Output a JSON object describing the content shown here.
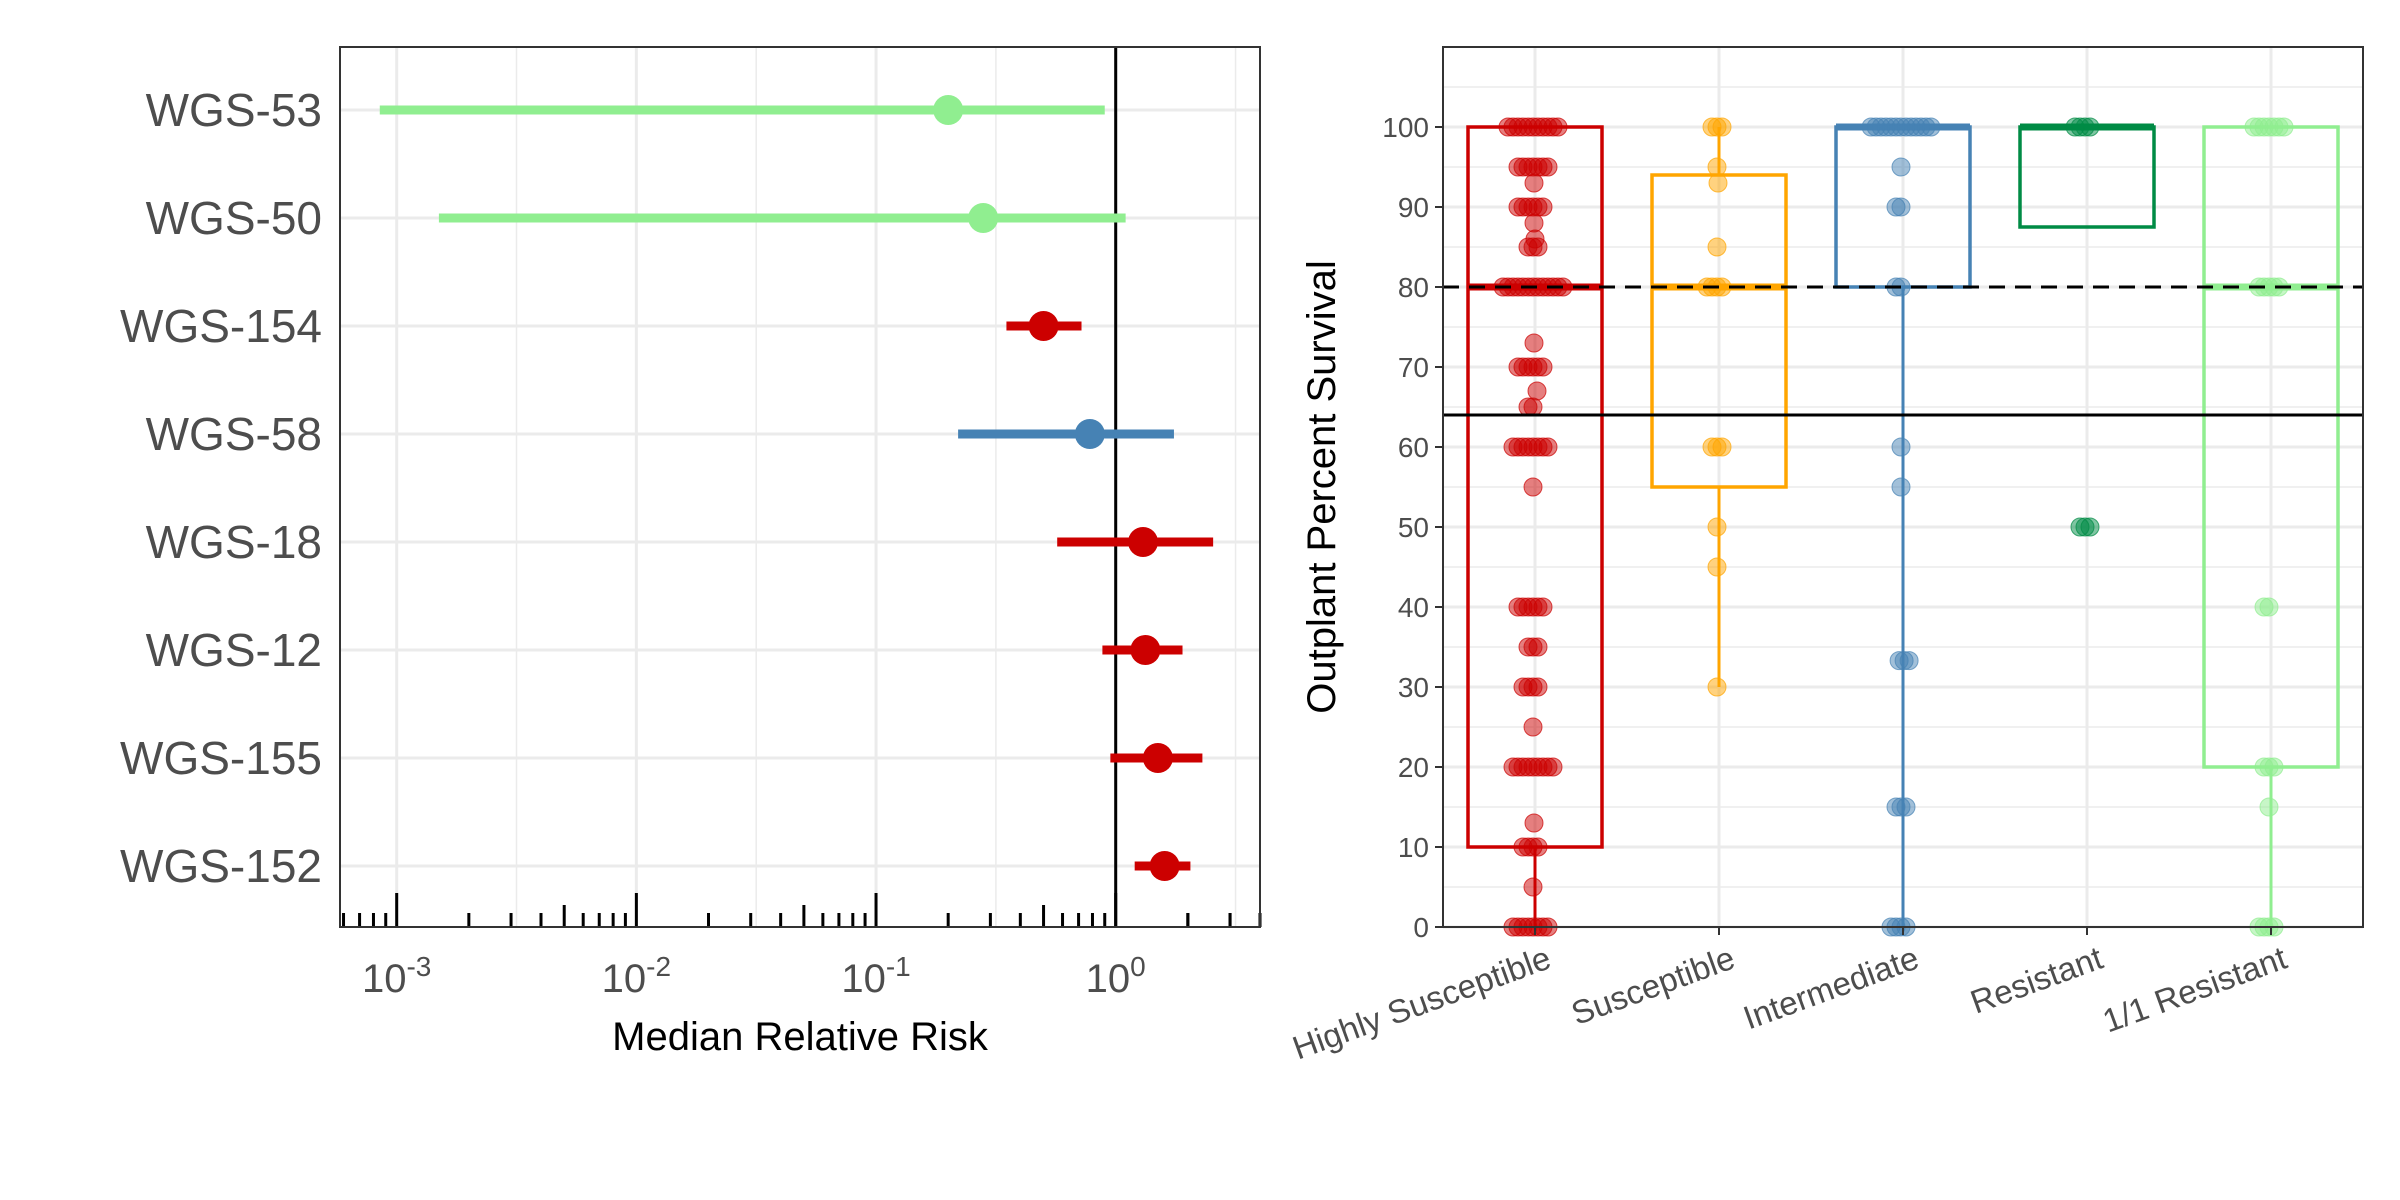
{
  "chart_data": [
    {
      "type": "forest",
      "title": "",
      "xlabel": "Median Relative Risk",
      "ylabel": "",
      "x_scale": "log10",
      "xlim": [
        0.00058,
        4
      ],
      "x_tick_labels": [
        {
          "base": "10",
          "exp": "-3",
          "value": 0.001
        },
        {
          "base": "10",
          "exp": "-2",
          "value": 0.01
        },
        {
          "base": "10",
          "exp": "-1",
          "value": 0.1
        },
        {
          "base": "10",
          "exp": "0",
          "value": 1
        }
      ],
      "reference_line": 1,
      "grid": true,
      "rows": [
        {
          "label": "WGS-53",
          "estimate": 0.2,
          "lower": 0.00085,
          "upper": 0.9,
          "color": "#90ee90"
        },
        {
          "label": "WGS-50",
          "estimate": 0.28,
          "lower": 0.0015,
          "upper": 1.1,
          "color": "#90ee90"
        },
        {
          "label": "WGS-154",
          "estimate": 0.5,
          "lower": 0.35,
          "upper": 0.72,
          "color": "#cc0000"
        },
        {
          "label": "WGS-58",
          "estimate": 0.78,
          "lower": 0.22,
          "upper": 1.75,
          "color": "#4682b4"
        },
        {
          "label": "WGS-18",
          "estimate": 1.3,
          "lower": 0.57,
          "upper": 2.55,
          "color": "#cc0000"
        },
        {
          "label": "WGS-12",
          "estimate": 1.33,
          "lower": 0.88,
          "upper": 1.9,
          "color": "#cc0000"
        },
        {
          "label": "WGS-155",
          "estimate": 1.5,
          "lower": 0.95,
          "upper": 2.3,
          "color": "#cc0000"
        },
        {
          "label": "WGS-152",
          "estimate": 1.6,
          "lower": 1.2,
          "upper": 2.05,
          "color": "#cc0000"
        }
      ]
    },
    {
      "type": "box",
      "title": "",
      "xlabel": "",
      "ylabel": "Outplant Percent Survival",
      "ylim": [
        0,
        110
      ],
      "y_ticks": [
        0,
        10,
        20,
        30,
        40,
        50,
        60,
        70,
        80,
        90,
        100
      ],
      "reference_lines": [
        {
          "value": 80,
          "style": "dashed"
        },
        {
          "value": 64,
          "style": "solid"
        }
      ],
      "grid": true,
      "categories": [
        "Highly Susceptible",
        "Susceptible",
        "Intermediate",
        "Resistant",
        "1/1 Resistant"
      ],
      "series": [
        {
          "name": "Highly Susceptible",
          "color": "#cc0000",
          "box": {
            "min": 0,
            "q1": 10,
            "median": 80,
            "q3": 100,
            "max": 100
          },
          "points": [
            100,
            100,
            100,
            100,
            100,
            100,
            100,
            100,
            100,
            100,
            100,
            95,
            95,
            95,
            95,
            95,
            95,
            95,
            93,
            90,
            90,
            90,
            90,
            90,
            90,
            88,
            86,
            85,
            85,
            85,
            80,
            80,
            80,
            80,
            80,
            80,
            80,
            80,
            80,
            80,
            80,
            80,
            80,
            73,
            70,
            70,
            70,
            70,
            70,
            70,
            67,
            65,
            65,
            60,
            60,
            60,
            60,
            60,
            60,
            60,
            60,
            55,
            40,
            40,
            40,
            40,
            40,
            40,
            35,
            35,
            35,
            30,
            30,
            30,
            30,
            25,
            20,
            20,
            20,
            20,
            20,
            20,
            20,
            20,
            20,
            13,
            10,
            10,
            10,
            10,
            5,
            0,
            0,
            0,
            0,
            0,
            0,
            0,
            0
          ]
        },
        {
          "name": "Susceptible",
          "color": "#ffa500",
          "box": {
            "min": 30,
            "q1": 55,
            "median": 80,
            "q3": 94,
            "max": 100
          },
          "points": [
            100,
            100,
            100,
            95,
            93,
            85,
            80,
            80,
            80,
            80,
            60,
            60,
            60,
            50,
            45,
            30
          ]
        },
        {
          "name": "Intermediate",
          "color": "#4682b4",
          "box": {
            "min": 0,
            "q1": 80,
            "median": 100,
            "q3": 100,
            "max": 100
          },
          "points": [
            100,
            100,
            100,
            100,
            100,
            100,
            100,
            100,
            100,
            100,
            100,
            100,
            100,
            95,
            90,
            90,
            80,
            80,
            60,
            55,
            33.3,
            33.3,
            33.3,
            15,
            15,
            15,
            0,
            0,
            0,
            0
          ]
        },
        {
          "name": "Resistant",
          "color": "#008b45",
          "box": {
            "min": 87.5,
            "q1": 87.5,
            "median": 100,
            "q3": 100,
            "max": 100
          },
          "points": [
            100,
            100,
            100,
            100,
            50,
            50,
            50
          ]
        },
        {
          "name": "1/1 Resistant",
          "color": "#90ee90",
          "box": {
            "min": 0,
            "q1": 20,
            "median": 80,
            "q3": 100,
            "max": 100
          },
          "points": [
            100,
            100,
            100,
            100,
            100,
            100,
            100,
            80,
            80,
            80,
            80,
            80,
            40,
            40,
            20,
            20,
            20,
            15,
            0,
            0,
            0,
            0
          ]
        }
      ]
    }
  ]
}
